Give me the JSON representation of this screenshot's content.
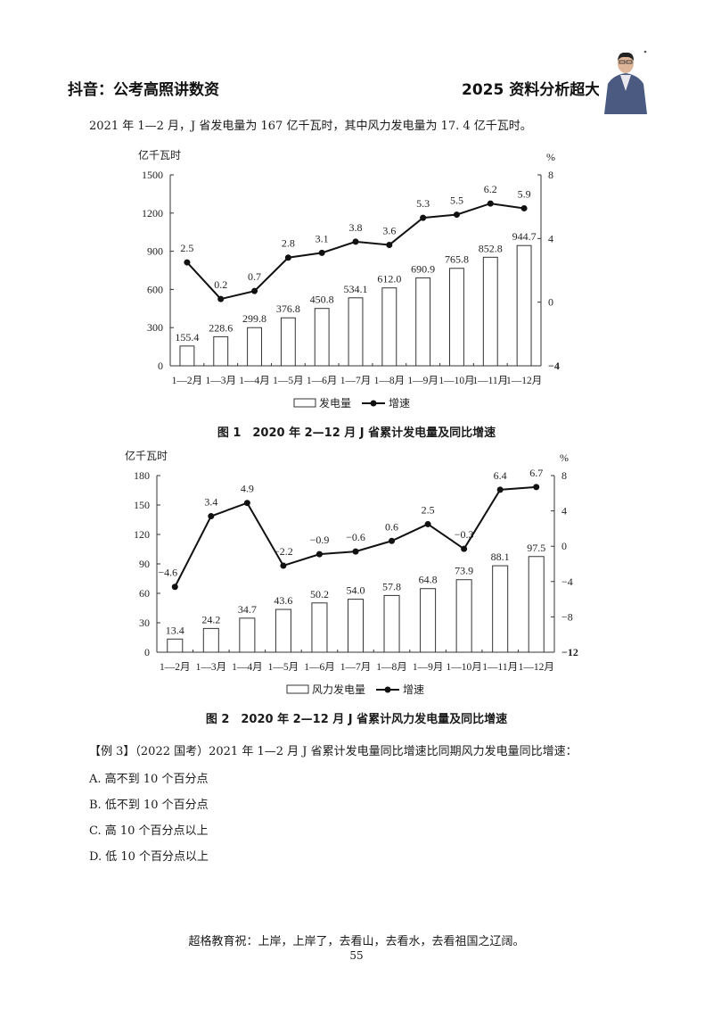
{
  "header": {
    "left": "抖音：公考高照讲数资",
    "right": "2025 资料分析超大杯"
  },
  "intro": "2021 年 1—2 月，J 省发电量为 167 亿千瓦时，其中风力发电量为 17. 4 亿千瓦时。",
  "chart_data": [
    {
      "type": "bar",
      "title": "图 1　2020 年 2—12 月 J 省累计发电量及同比增速",
      "ylabel": "亿千瓦时",
      "y2label": "%",
      "categories": [
        "1—2月",
        "1—3月",
        "1—4月",
        "1—5月",
        "1—6月",
        "1—7月",
        "1—8月",
        "1—9月",
        "1—10月",
        "1—11月",
        "1—12月"
      ],
      "series": [
        {
          "name": "发电量",
          "type": "bar",
          "axis": "left",
          "values": [
            155.4,
            228.6,
            299.8,
            376.8,
            450.8,
            534.1,
            612.0,
            690.9,
            765.8,
            852.8,
            944.7
          ]
        },
        {
          "name": "增速",
          "type": "line",
          "axis": "right",
          "values": [
            2.5,
            0.2,
            0.7,
            2.8,
            3.1,
            3.8,
            3.6,
            5.3,
            5.5,
            6.2,
            5.9
          ]
        }
      ],
      "ylim": [
        0,
        1500
      ],
      "yticks": [
        0,
        300,
        600,
        900,
        1200,
        1500
      ],
      "y2lim": [
        -4,
        8
      ],
      "y2ticks": [
        -4,
        0,
        4,
        8
      ],
      "legend": [
        "发电量",
        "增速"
      ],
      "legend_position": "bottom",
      "grid": false
    },
    {
      "type": "bar",
      "title": "图 2　2020 年 2—12 月 J 省累计风力发电量及同比增速",
      "ylabel": "亿千瓦时",
      "y2label": "%",
      "categories": [
        "1—2月",
        "1—3月",
        "1—4月",
        "1—5月",
        "1—6月",
        "1—7月",
        "1—8月",
        "1—9月",
        "1—10月",
        "1—11月",
        "1—12月"
      ],
      "series": [
        {
          "name": "风力发电量",
          "type": "bar",
          "axis": "left",
          "values": [
            13.4,
            24.2,
            34.7,
            43.6,
            50.2,
            54.0,
            57.8,
            64.8,
            73.9,
            88.1,
            97.5
          ]
        },
        {
          "name": "增速",
          "type": "line",
          "axis": "right",
          "values": [
            -4.6,
            3.4,
            4.9,
            -2.2,
            -0.9,
            -0.6,
            0.6,
            2.5,
            -0.3,
            6.4,
            6.7
          ]
        }
      ],
      "ylim": [
        0,
        180
      ],
      "yticks": [
        0,
        30,
        60,
        90,
        120,
        150,
        180
      ],
      "y2lim": [
        -12,
        8
      ],
      "y2ticks": [
        -12,
        -8,
        -4,
        0,
        4,
        8
      ],
      "legend": [
        "风力发电量",
        "增速"
      ],
      "legend_position": "bottom",
      "grid": false
    }
  ],
  "figures": {
    "fig1_caption": "图 1　2020 年 2—12 月 J 省累计发电量及同比增速",
    "fig2_caption": "图 2　2020 年 2—12 月 J 省累计风力发电量及同比增速"
  },
  "question": {
    "stem": "【例 3】（2022 国考）2021 年 1—2 月 J 省累计发电量同比增速比同期风力发电量同比增速：",
    "options": [
      "A. 高不到 10 个百分点",
      "B. 低不到 10 个百分点",
      "C. 高 10 个百分点以上",
      "D. 低 10 个百分点以上"
    ]
  },
  "footer": {
    "slogan": "超格教育祝：上岸，上岸了，去看山，去看水，去看祖国之辽阔。",
    "page": "55"
  }
}
